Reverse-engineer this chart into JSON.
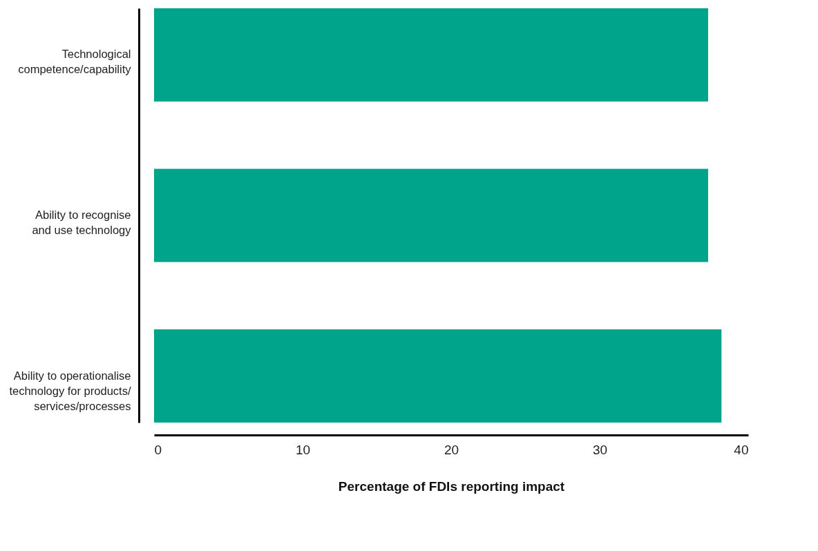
{
  "chart_data": {
    "type": "bar",
    "orientation": "horizontal",
    "xlabel": "Percentage of FDIs reporting impact",
    "categories": [
      "Technological\ncompetence/capability",
      "Ability to recognise\nand use technology",
      "Ability to operationalise\ntechnology for products/\nservices/processes"
    ],
    "values": [
      37.3,
      37.3,
      38.2
    ],
    "color": "#00a48a",
    "xlim": [
      0,
      40
    ],
    "xticks": [
      0,
      10,
      20,
      30,
      40
    ],
    "grid": false
  }
}
